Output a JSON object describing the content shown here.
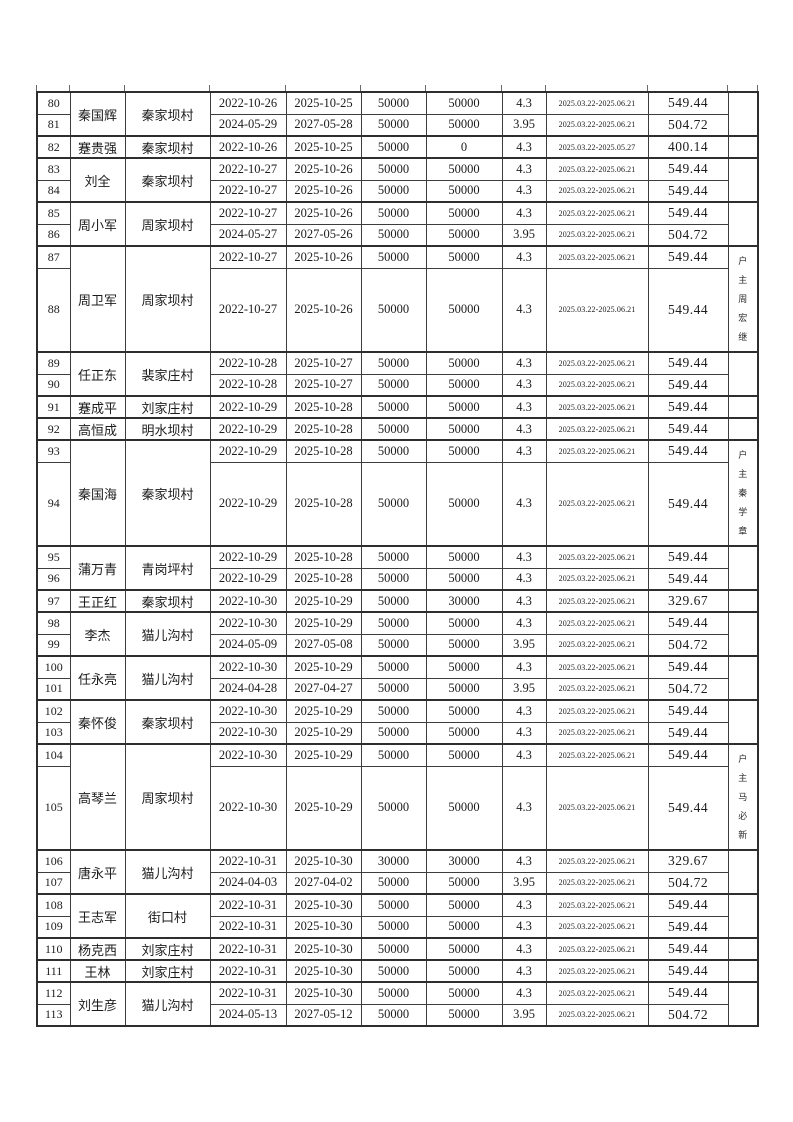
{
  "document": {
    "kind": "loan-interest-table-page",
    "border_color": "#2e2e2e",
    "text_color": "#1c1c1c",
    "default_period": "2025.03.22-2025.06.21",
    "rows": [
      {
        "idx": "80",
        "name": "秦国辉",
        "village": "秦家坝村",
        "span": 2,
        "note": "",
        "start": "2022-10-26",
        "end": "2025-10-25",
        "amt1": "50000",
        "amt2": "50000",
        "rate": "4.3",
        "period": "2025.03.22-2025.06.21",
        "value": "549.44"
      },
      {
        "idx": "81",
        "start": "2024-05-29",
        "end": "2027-05-28",
        "amt1": "50000",
        "amt2": "50000",
        "rate": "3.95",
        "period": "2025.03.22-2025.06.21",
        "value": "504.72"
      },
      {
        "idx": "82",
        "name": "蹇贵强",
        "village": "秦家坝村",
        "span": 1,
        "note": "",
        "start": "2022-10-26",
        "end": "2025-10-25",
        "amt1": "50000",
        "amt2": "0",
        "rate": "4.3",
        "period": "2025.03.22-2025.05.27",
        "value": "400.14"
      },
      {
        "idx": "83",
        "name": "刘全",
        "village": "秦家坝村",
        "span": 2,
        "note": "",
        "start": "2022-10-27",
        "end": "2025-10-26",
        "amt1": "50000",
        "amt2": "50000",
        "rate": "4.3",
        "period": "2025.03.22-2025.06.21",
        "value": "549.44"
      },
      {
        "idx": "84",
        "start": "2022-10-27",
        "end": "2025-10-26",
        "amt1": "50000",
        "amt2": "50000",
        "rate": "4.3",
        "period": "2025.03.22-2025.06.21",
        "value": "549.44"
      },
      {
        "idx": "85",
        "name": "周小军",
        "village": "周家坝村",
        "span": 2,
        "note": "",
        "start": "2022-10-27",
        "end": "2025-10-26",
        "amt1": "50000",
        "amt2": "50000",
        "rate": "4.3",
        "period": "2025.03.22-2025.06.21",
        "value": "549.44"
      },
      {
        "idx": "86",
        "start": "2024-05-27",
        "end": "2027-05-26",
        "amt1": "50000",
        "amt2": "50000",
        "rate": "3.95",
        "period": "2025.03.22-2025.06.21",
        "value": "504.72"
      },
      {
        "idx": "87",
        "name": "周卫军",
        "village": "周家坝村",
        "span": 2,
        "note": "户主周宏继",
        "start": "2022-10-27",
        "end": "2025-10-26",
        "amt1": "50000",
        "amt2": "50000",
        "rate": "4.3",
        "period": "2025.03.22-2025.06.21",
        "value": "549.44"
      },
      {
        "idx": "88",
        "tall": true,
        "start": "2022-10-27",
        "end": "2025-10-26",
        "amt1": "50000",
        "amt2": "50000",
        "rate": "4.3",
        "period": "2025.03.22-2025.06.21",
        "value": "549.44"
      },
      {
        "idx": "89",
        "name": "任正东",
        "village": "裴家庄村",
        "span": 2,
        "note": "",
        "start": "2022-10-28",
        "end": "2025-10-27",
        "amt1": "50000",
        "amt2": "50000",
        "rate": "4.3",
        "period": "2025.03.22-2025.06.21",
        "value": "549.44"
      },
      {
        "idx": "90",
        "start": "2022-10-28",
        "end": "2025-10-27",
        "amt1": "50000",
        "amt2": "50000",
        "rate": "4.3",
        "period": "2025.03.22-2025.06.21",
        "value": "549.44"
      },
      {
        "idx": "91",
        "name": "蹇成平",
        "village": "刘家庄村",
        "span": 1,
        "note": "",
        "start": "2022-10-29",
        "end": "2025-10-28",
        "amt1": "50000",
        "amt2": "50000",
        "rate": "4.3",
        "period": "2025.03.22-2025.06.21",
        "value": "549.44"
      },
      {
        "idx": "92",
        "name": "高恒成",
        "village": "明水坝村",
        "span": 1,
        "note": "",
        "start": "2022-10-29",
        "end": "2025-10-28",
        "amt1": "50000",
        "amt2": "50000",
        "rate": "4.3",
        "period": "2025.03.22-2025.06.21",
        "value": "549.44"
      },
      {
        "idx": "93",
        "name": "秦国海",
        "village": "秦家坝村",
        "span": 2,
        "note": "户主秦学章",
        "start": "2022-10-29",
        "end": "2025-10-28",
        "amt1": "50000",
        "amt2": "50000",
        "rate": "4.3",
        "period": "2025.03.22-2025.06.21",
        "value": "549.44"
      },
      {
        "idx": "94",
        "tall": true,
        "start": "2022-10-29",
        "end": "2025-10-28",
        "amt1": "50000",
        "amt2": "50000",
        "rate": "4.3",
        "period": "2025.03.22-2025.06.21",
        "value": "549.44"
      },
      {
        "idx": "95",
        "name": "蒲万青",
        "village": "青岗坪村",
        "span": 2,
        "note": "",
        "start": "2022-10-29",
        "end": "2025-10-28",
        "amt1": "50000",
        "amt2": "50000",
        "rate": "4.3",
        "period": "2025.03.22-2025.06.21",
        "value": "549.44"
      },
      {
        "idx": "96",
        "start": "2022-10-29",
        "end": "2025-10-28",
        "amt1": "50000",
        "amt2": "50000",
        "rate": "4.3",
        "period": "2025.03.22-2025.06.21",
        "value": "549.44"
      },
      {
        "idx": "97",
        "name": "王正红",
        "village": "秦家坝村",
        "span": 1,
        "note": "",
        "start": "2022-10-30",
        "end": "2025-10-29",
        "amt1": "50000",
        "amt2": "30000",
        "rate": "4.3",
        "period": "2025.03.22-2025.06.21",
        "value": "329.67"
      },
      {
        "idx": "98",
        "name": "李杰",
        "village": "猫儿沟村",
        "span": 2,
        "note": "",
        "start": "2022-10-30",
        "end": "2025-10-29",
        "amt1": "50000",
        "amt2": "50000",
        "rate": "4.3",
        "period": "2025.03.22-2025.06.21",
        "value": "549.44"
      },
      {
        "idx": "99",
        "start": "2024-05-09",
        "end": "2027-05-08",
        "amt1": "50000",
        "amt2": "50000",
        "rate": "3.95",
        "period": "2025.03.22-2025.06.21",
        "value": "504.72"
      },
      {
        "idx": "100",
        "name": "任永亮",
        "village": "猫儿沟村",
        "span": 2,
        "note": "",
        "start": "2022-10-30",
        "end": "2025-10-29",
        "amt1": "50000",
        "amt2": "50000",
        "rate": "4.3",
        "period": "2025.03.22-2025.06.21",
        "value": "549.44"
      },
      {
        "idx": "101",
        "start": "2024-04-28",
        "end": "2027-04-27",
        "amt1": "50000",
        "amt2": "50000",
        "rate": "3.95",
        "period": "2025.03.22-2025.06.21",
        "value": "504.72"
      },
      {
        "idx": "102",
        "name": "秦怀俊",
        "village": "秦家坝村",
        "span": 2,
        "note": "",
        "start": "2022-10-30",
        "end": "2025-10-29",
        "amt1": "50000",
        "amt2": "50000",
        "rate": "4.3",
        "period": "2025.03.22-2025.06.21",
        "value": "549.44"
      },
      {
        "idx": "103",
        "start": "2022-10-30",
        "end": "2025-10-29",
        "amt1": "50000",
        "amt2": "50000",
        "rate": "4.3",
        "period": "2025.03.22-2025.06.21",
        "value": "549.44"
      },
      {
        "idx": "104",
        "name": "高琴兰",
        "village": "周家坝村",
        "span": 2,
        "note": "户主马必新",
        "start": "2022-10-30",
        "end": "2025-10-29",
        "amt1": "50000",
        "amt2": "50000",
        "rate": "4.3",
        "period": "2025.03.22-2025.06.21",
        "value": "549.44"
      },
      {
        "idx": "105",
        "tall": true,
        "start": "2022-10-30",
        "end": "2025-10-29",
        "amt1": "50000",
        "amt2": "50000",
        "rate": "4.3",
        "period": "2025.03.22-2025.06.21",
        "value": "549.44"
      },
      {
        "idx": "106",
        "name": "唐永平",
        "village": "猫儿沟村",
        "span": 2,
        "note": "",
        "start": "2022-10-31",
        "end": "2025-10-30",
        "amt1": "30000",
        "amt2": "30000",
        "rate": "4.3",
        "period": "2025.03.22-2025.06.21",
        "value": "329.67"
      },
      {
        "idx": "107",
        "start": "2024-04-03",
        "end": "2027-04-02",
        "amt1": "50000",
        "amt2": "50000",
        "rate": "3.95",
        "period": "2025.03.22-2025.06.21",
        "value": "504.72"
      },
      {
        "idx": "108",
        "name": "王志军",
        "village": "街口村",
        "span": 2,
        "note": "",
        "start": "2022-10-31",
        "end": "2025-10-30",
        "amt1": "50000",
        "amt2": "50000",
        "rate": "4.3",
        "period": "2025.03.22-2025.06.21",
        "value": "549.44"
      },
      {
        "idx": "109",
        "start": "2022-10-31",
        "end": "2025-10-30",
        "amt1": "50000",
        "amt2": "50000",
        "rate": "4.3",
        "period": "2025.03.22-2025.06.21",
        "value": "549.44"
      },
      {
        "idx": "110",
        "name": "杨克西",
        "village": "刘家庄村",
        "span": 1,
        "note": "",
        "start": "2022-10-31",
        "end": "2025-10-30",
        "amt1": "50000",
        "amt2": "50000",
        "rate": "4.3",
        "period": "2025.03.22-2025.06.21",
        "value": "549.44"
      },
      {
        "idx": "111",
        "name": "王林",
        "village": "刘家庄村",
        "span": 1,
        "note": "",
        "start": "2022-10-31",
        "end": "2025-10-30",
        "amt1": "50000",
        "amt2": "50000",
        "rate": "4.3",
        "period": "2025.03.22-2025.06.21",
        "value": "549.44"
      },
      {
        "idx": "112",
        "name": "刘生彦",
        "village": "猫儿沟村",
        "span": 2,
        "note": "",
        "start": "2022-10-31",
        "end": "2025-10-30",
        "amt1": "50000",
        "amt2": "50000",
        "rate": "4.3",
        "period": "2025.03.22-2025.06.21",
        "value": "549.44"
      },
      {
        "idx": "113",
        "start": "2024-05-13",
        "end": "2027-05-12",
        "amt1": "50000",
        "amt2": "50000",
        "rate": "3.95",
        "period": "2025.03.22-2025.06.21",
        "value": "504.72"
      }
    ]
  }
}
